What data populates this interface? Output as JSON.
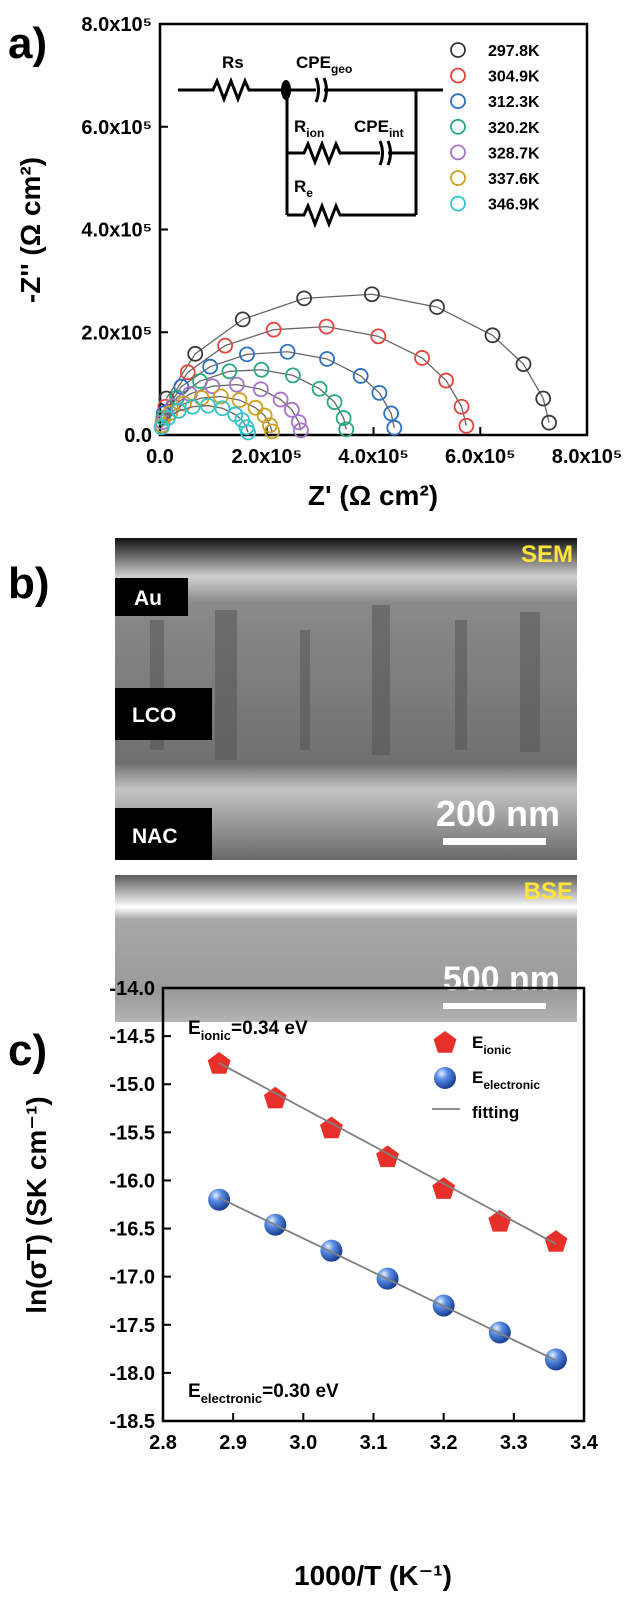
{
  "chart_data": [
    {
      "type": "scatter",
      "panel_label": "a)",
      "x_label": "Z' (Ω cm²)",
      "y_label": "-Z'' (Ω cm²)",
      "xlim": [
        0,
        800000
      ],
      "ylim": [
        0,
        800000
      ],
      "xticks": [
        {
          "value": 0,
          "label": "0.0"
        },
        {
          "value": 200000,
          "label": "2.0x10⁵"
        },
        {
          "value": 400000,
          "label": "4.0x10⁵"
        },
        {
          "value": 600000,
          "label": "6.0x10⁵"
        },
        {
          "value": 800000,
          "label": "8.0x10⁵"
        }
      ],
      "yticks": [
        {
          "value": 0,
          "label": "0.0"
        },
        {
          "value": 200000,
          "label": "2.0x10⁵"
        },
        {
          "value": 400000,
          "label": "4.0x10⁵"
        },
        {
          "value": 600000,
          "label": "6.0x10⁵"
        },
        {
          "value": 800000,
          "label": "8.0x10⁵"
        }
      ],
      "legend": "upper right",
      "marker": "open-circle",
      "series": [
        {
          "name": "297.8K",
          "color": "#3a3a3a",
          "x": [
            12000,
            66000,
            155000,
            270000,
            397000,
            519000,
            623000,
            681000,
            718000,
            729000
          ],
          "values": [
            71000,
            158000,
            225000,
            266000,
            274000,
            249000,
            194000,
            138000,
            71000,
            24000
          ]
        },
        {
          "name": "304.9K",
          "color": "#e2453e",
          "x": [
            10000,
            52000,
            122000,
            213000,
            312000,
            409000,
            491000,
            536000,
            565000,
            574000
          ],
          "values": [
            55000,
            122000,
            174000,
            205000,
            211000,
            192000,
            150000,
            106000,
            55000,
            18000
          ]
        },
        {
          "name": "312.3K",
          "color": "#2e6fc0",
          "x": [
            7000,
            40000,
            94000,
            163000,
            239000,
            313000,
            376000,
            411000,
            433000,
            439000
          ],
          "values": [
            42000,
            94000,
            133000,
            157000,
            162000,
            148000,
            115000,
            82000,
            42000,
            14000
          ]
        },
        {
          "name": "320.2K",
          "color": "#2aa87a",
          "x": [
            6000,
            32000,
            75000,
            130000,
            190000,
            249000,
            299000,
            327000,
            344000,
            349000
          ],
          "values": [
            33000,
            73000,
            105000,
            124000,
            127000,
            116000,
            90000,
            64000,
            33000,
            11000
          ]
        },
        {
          "name": "328.7K",
          "color": "#a673cc",
          "x": [
            5000,
            24000,
            56000,
            98000,
            144000,
            189000,
            226000,
            247000,
            260000,
            264000
          ],
          "values": [
            25000,
            56000,
            80000,
            95000,
            98000,
            89000,
            69000,
            49000,
            25000,
            9000
          ]
        },
        {
          "name": "337.6K",
          "color": "#cc9e22",
          "x": [
            4000,
            19000,
            45000,
            78000,
            114000,
            149000,
            179000,
            196000,
            206000,
            210000
          ],
          "values": [
            19000,
            43000,
            61000,
            72000,
            75000,
            68000,
            53000,
            38000,
            19000,
            7000
          ]
        },
        {
          "name": "346.9K",
          "color": "#33c2cc",
          "x": [
            3000,
            15000,
            35000,
            61000,
            90000,
            117000,
            141000,
            154000,
            162000,
            165000
          ],
          "values": [
            15000,
            33000,
            47000,
            55000,
            57000,
            52000,
            40000,
            29000,
            15000,
            5000
          ]
        }
      ],
      "circuit": [
        {
          "main": "Rs"
        },
        {
          "main": "CPE",
          "sub": "geo"
        },
        {
          "main": "R",
          "sub": "ion"
        },
        {
          "main": "CPE",
          "sub": "int"
        },
        {
          "main": "R",
          "sub": "e"
        }
      ]
    },
    {
      "type": "scatter",
      "panel_label": "c)",
      "x_label": "1000/T (K⁻¹)",
      "y_label": "ln(σT) (SK cm⁻¹)",
      "xlim": [
        2.8,
        3.4
      ],
      "ylim": [
        -18.5,
        -14.0
      ],
      "xticks": [
        2.8,
        2.9,
        {
          "value": 3,
          "label": "3.0"
        },
        3.1,
        3.2,
        3.3,
        3.4
      ],
      "yticks": [
        -18.5,
        {
          "value": -18,
          "label": "-18.0"
        },
        -17.5,
        {
          "value": -17,
          "label": "-17.0"
        },
        -16.5,
        {
          "value": -16,
          "label": "-16.0"
        },
        -15.5,
        {
          "value": -15,
          "label": "-15.0"
        },
        -14.5,
        {
          "value": -14,
          "label": "-14.0"
        }
      ],
      "legend": "upper right",
      "series": [
        {
          "name": {
            "main": "E",
            "sub": "ionic"
          },
          "color": "#e8302a",
          "marker": "pentagon",
          "x": [
            2.88,
            2.96,
            3.04,
            3.12,
            3.2,
            3.28,
            3.36
          ],
          "values": [
            -14.78,
            -15.14,
            -15.45,
            -15.75,
            -16.08,
            -16.42,
            -16.63
          ]
        },
        {
          "name": {
            "main": "E",
            "sub": "electronic"
          },
          "color": "#2f6fd0",
          "marker": "sphere",
          "x": [
            2.88,
            2.96,
            3.04,
            3.12,
            3.2,
            3.28,
            3.36
          ],
          "values": [
            -16.2,
            -16.46,
            -16.73,
            -17.02,
            -17.3,
            -17.58,
            -17.86
          ]
        },
        {
          "name": "fitting",
          "color": "#808080",
          "marker": "line",
          "segments": [
            {
              "x": [
                2.88,
                3.36
              ],
              "values": [
                -14.78,
                -16.66
              ]
            },
            {
              "x": [
                2.88,
                3.36
              ],
              "values": [
                -16.18,
                -17.87
              ]
            }
          ]
        }
      ],
      "annotations": [
        {
          "main": "E",
          "sub": "ionic",
          "rest": "=0.34 eV"
        },
        {
          "main": "E",
          "sub": "electronic",
          "rest": "=0.30 eV"
        }
      ]
    }
  ],
  "images": {
    "panel_label": "b)",
    "sem": {
      "title": "SEM",
      "layers": [
        "Au",
        "LCO",
        "NAC"
      ],
      "scale": "200 nm"
    },
    "bse": {
      "title": "BSE",
      "scale": "500 nm"
    }
  }
}
